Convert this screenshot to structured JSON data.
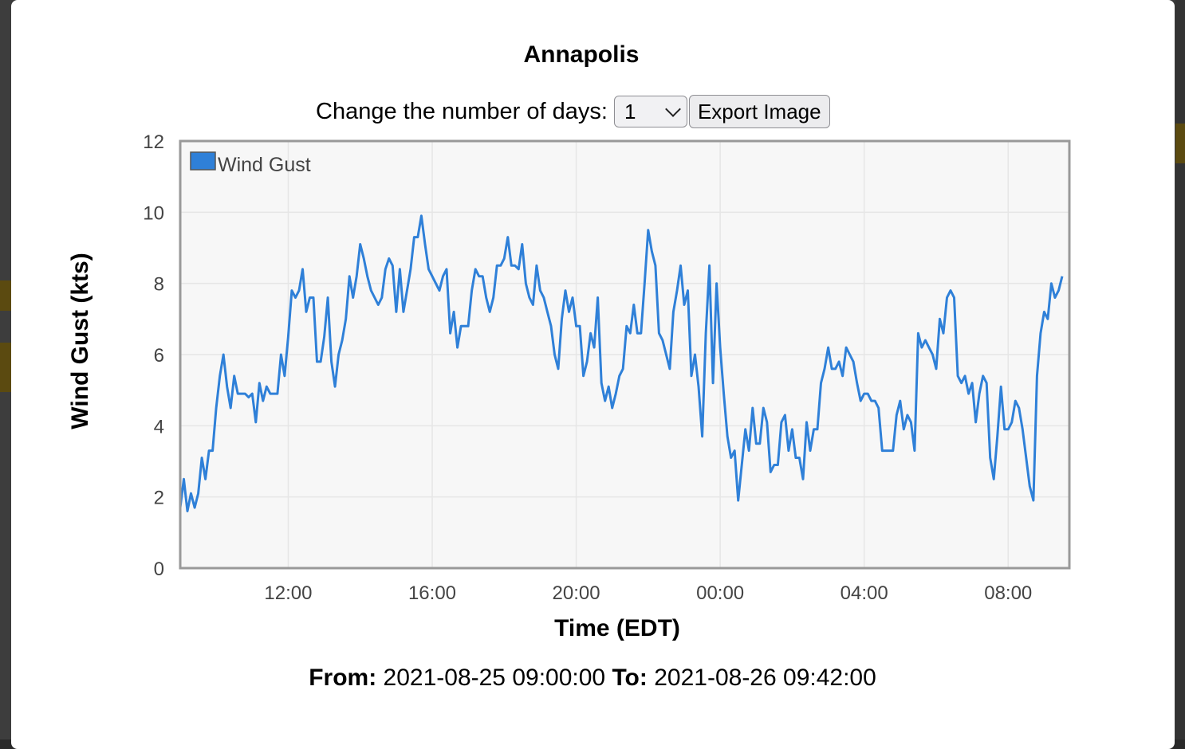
{
  "title": "Annapolis",
  "controls": {
    "days_label": "Change the number of days:",
    "days_selected": "1",
    "export_label": "Export Image"
  },
  "footer": {
    "from_label": "From:",
    "from_value": "2021-08-25 09:00:00",
    "to_label": "To:",
    "to_value": "2021-08-26 09:42:00"
  },
  "colors": {
    "series": "#2f80d8",
    "plot_bg": "#f7f7f7",
    "grid": "#e6e6e6",
    "border": "#999999"
  },
  "chart_data": {
    "type": "line",
    "xlabel": "Time (EDT)",
    "ylabel": "Wind Gust (kts)",
    "ylim": [
      0,
      12
    ],
    "yticks": [
      0,
      2,
      4,
      6,
      8,
      10,
      12
    ],
    "xlim": [
      "2021-08-25 09:00",
      "2021-08-26 09:42"
    ],
    "xticks": [
      {
        "time": "2021-08-25 12:00",
        "label": "12:00"
      },
      {
        "time": "2021-08-25 16:00",
        "label": "16:00"
      },
      {
        "time": "2021-08-25 20:00",
        "label": "20:00"
      },
      {
        "time": "2021-08-26 00:00",
        "label": "00:00"
      },
      {
        "time": "2021-08-26 04:00",
        "label": "04:00"
      },
      {
        "time": "2021-08-26 08:00",
        "label": "08:00"
      }
    ],
    "grid": true,
    "legend_position": "top-left",
    "series": [
      {
        "name": "Wind Gust",
        "color": "#2f80d8",
        "points": [
          [
            "2021-08-25 09:00",
            1.7
          ],
          [
            "2021-08-25 09:06",
            2.5
          ],
          [
            "2021-08-25 09:12",
            1.6
          ],
          [
            "2021-08-25 09:18",
            2.1
          ],
          [
            "2021-08-25 09:24",
            1.7
          ],
          [
            "2021-08-25 09:30",
            2.1
          ],
          [
            "2021-08-25 09:36",
            3.1
          ],
          [
            "2021-08-25 09:42",
            2.5
          ],
          [
            "2021-08-25 09:48",
            3.3
          ],
          [
            "2021-08-25 09:54",
            3.3
          ],
          [
            "2021-08-25 10:00",
            4.5
          ],
          [
            "2021-08-25 10:06",
            5.4
          ],
          [
            "2021-08-25 10:12",
            6.0
          ],
          [
            "2021-08-25 10:18",
            5.1
          ],
          [
            "2021-08-25 10:24",
            4.5
          ],
          [
            "2021-08-25 10:30",
            5.4
          ],
          [
            "2021-08-25 10:36",
            4.9
          ],
          [
            "2021-08-25 10:42",
            4.9
          ],
          [
            "2021-08-25 10:48",
            4.9
          ],
          [
            "2021-08-25 10:54",
            4.8
          ],
          [
            "2021-08-25 11:00",
            4.9
          ],
          [
            "2021-08-25 11:06",
            4.1
          ],
          [
            "2021-08-25 11:12",
            5.2
          ],
          [
            "2021-08-25 11:18",
            4.7
          ],
          [
            "2021-08-25 11:24",
            5.1
          ],
          [
            "2021-08-25 11:30",
            4.9
          ],
          [
            "2021-08-25 11:36",
            4.9
          ],
          [
            "2021-08-25 11:42",
            4.9
          ],
          [
            "2021-08-25 11:48",
            6.0
          ],
          [
            "2021-08-25 11:54",
            5.4
          ],
          [
            "2021-08-25 12:00",
            6.5
          ],
          [
            "2021-08-25 12:06",
            7.8
          ],
          [
            "2021-08-25 12:12",
            7.6
          ],
          [
            "2021-08-25 12:18",
            7.8
          ],
          [
            "2021-08-25 12:24",
            8.4
          ],
          [
            "2021-08-25 12:30",
            7.2
          ],
          [
            "2021-08-25 12:36",
            7.6
          ],
          [
            "2021-08-25 12:42",
            7.6
          ],
          [
            "2021-08-25 12:48",
            5.8
          ],
          [
            "2021-08-25 12:54",
            5.8
          ],
          [
            "2021-08-25 13:00",
            6.5
          ],
          [
            "2021-08-25 13:06",
            7.6
          ],
          [
            "2021-08-25 13:12",
            5.8
          ],
          [
            "2021-08-25 13:18",
            5.1
          ],
          [
            "2021-08-25 13:24",
            6.0
          ],
          [
            "2021-08-25 13:30",
            6.4
          ],
          [
            "2021-08-25 13:36",
            7.0
          ],
          [
            "2021-08-25 13:42",
            8.2
          ],
          [
            "2021-08-25 13:48",
            7.6
          ],
          [
            "2021-08-25 13:54",
            8.2
          ],
          [
            "2021-08-25 14:00",
            9.1
          ],
          [
            "2021-08-25 14:06",
            8.7
          ],
          [
            "2021-08-25 14:12",
            8.2
          ],
          [
            "2021-08-25 14:18",
            7.8
          ],
          [
            "2021-08-25 14:24",
            7.6
          ],
          [
            "2021-08-25 14:30",
            7.4
          ],
          [
            "2021-08-25 14:36",
            7.6
          ],
          [
            "2021-08-25 14:42",
            8.4
          ],
          [
            "2021-08-25 14:48",
            8.7
          ],
          [
            "2021-08-25 14:54",
            8.5
          ],
          [
            "2021-08-25 15:00",
            7.2
          ],
          [
            "2021-08-25 15:06",
            8.4
          ],
          [
            "2021-08-25 15:12",
            7.2
          ],
          [
            "2021-08-25 15:18",
            7.8
          ],
          [
            "2021-08-25 15:24",
            8.4
          ],
          [
            "2021-08-25 15:30",
            9.3
          ],
          [
            "2021-08-25 15:36",
            9.3
          ],
          [
            "2021-08-25 15:42",
            9.9
          ],
          [
            "2021-08-25 15:48",
            9.1
          ],
          [
            "2021-08-25 15:54",
            8.4
          ],
          [
            "2021-08-25 16:00",
            8.2
          ],
          [
            "2021-08-25 16:06",
            8.0
          ],
          [
            "2021-08-25 16:12",
            7.8
          ],
          [
            "2021-08-25 16:18",
            8.2
          ],
          [
            "2021-08-25 16:24",
            8.4
          ],
          [
            "2021-08-25 16:30",
            6.6
          ],
          [
            "2021-08-25 16:36",
            7.2
          ],
          [
            "2021-08-25 16:42",
            6.2
          ],
          [
            "2021-08-25 16:48",
            6.8
          ],
          [
            "2021-08-25 16:54",
            6.8
          ],
          [
            "2021-08-25 17:00",
            6.8
          ],
          [
            "2021-08-25 17:06",
            7.8
          ],
          [
            "2021-08-25 17:12",
            8.4
          ],
          [
            "2021-08-25 17:18",
            8.2
          ],
          [
            "2021-08-25 17:24",
            8.2
          ],
          [
            "2021-08-25 17:30",
            7.6
          ],
          [
            "2021-08-25 17:36",
            7.2
          ],
          [
            "2021-08-25 17:42",
            7.6
          ],
          [
            "2021-08-25 17:48",
            8.5
          ],
          [
            "2021-08-25 17:54",
            8.5
          ],
          [
            "2021-08-25 18:00",
            8.7
          ],
          [
            "2021-08-25 18:06",
            9.3
          ],
          [
            "2021-08-25 18:12",
            8.5
          ],
          [
            "2021-08-25 18:18",
            8.5
          ],
          [
            "2021-08-25 18:24",
            8.4
          ],
          [
            "2021-08-25 18:30",
            9.1
          ],
          [
            "2021-08-25 18:36",
            8.0
          ],
          [
            "2021-08-25 18:42",
            7.6
          ],
          [
            "2021-08-25 18:48",
            7.4
          ],
          [
            "2021-08-25 18:54",
            8.5
          ],
          [
            "2021-08-25 19:00",
            7.8
          ],
          [
            "2021-08-25 19:06",
            7.6
          ],
          [
            "2021-08-25 19:12",
            7.2
          ],
          [
            "2021-08-25 19:18",
            6.8
          ],
          [
            "2021-08-25 19:24",
            6.0
          ],
          [
            "2021-08-25 19:30",
            5.6
          ],
          [
            "2021-08-25 19:36",
            7.0
          ],
          [
            "2021-08-25 19:42",
            7.8
          ],
          [
            "2021-08-25 19:48",
            7.2
          ],
          [
            "2021-08-25 19:54",
            7.6
          ],
          [
            "2021-08-25 20:00",
            6.8
          ],
          [
            "2021-08-25 20:06",
            6.8
          ],
          [
            "2021-08-25 20:12",
            5.4
          ],
          [
            "2021-08-25 20:18",
            5.8
          ],
          [
            "2021-08-25 20:24",
            6.6
          ],
          [
            "2021-08-25 20:30",
            6.2
          ],
          [
            "2021-08-25 20:36",
            7.6
          ],
          [
            "2021-08-25 20:42",
            5.2
          ],
          [
            "2021-08-25 20:48",
            4.7
          ],
          [
            "2021-08-25 20:54",
            5.1
          ],
          [
            "2021-08-25 21:00",
            4.5
          ],
          [
            "2021-08-25 21:06",
            4.9
          ],
          [
            "2021-08-25 21:12",
            5.4
          ],
          [
            "2021-08-25 21:18",
            5.6
          ],
          [
            "2021-08-25 21:24",
            6.8
          ],
          [
            "2021-08-25 21:30",
            6.6
          ],
          [
            "2021-08-25 21:36",
            7.4
          ],
          [
            "2021-08-25 21:42",
            6.6
          ],
          [
            "2021-08-25 21:48",
            6.6
          ],
          [
            "2021-08-25 21:54",
            8.0
          ],
          [
            "2021-08-25 22:00",
            9.5
          ],
          [
            "2021-08-25 22:06",
            8.9
          ],
          [
            "2021-08-25 22:12",
            8.5
          ],
          [
            "2021-08-25 22:18",
            6.6
          ],
          [
            "2021-08-25 22:24",
            6.4
          ],
          [
            "2021-08-25 22:30",
            6.0
          ],
          [
            "2021-08-25 22:36",
            5.6
          ],
          [
            "2021-08-25 22:42",
            7.2
          ],
          [
            "2021-08-25 22:48",
            7.8
          ],
          [
            "2021-08-25 22:54",
            8.5
          ],
          [
            "2021-08-25 23:00",
            7.4
          ],
          [
            "2021-08-25 23:06",
            7.8
          ],
          [
            "2021-08-25 23:12",
            5.4
          ],
          [
            "2021-08-25 23:18",
            6.0
          ],
          [
            "2021-08-25 23:24",
            5.1
          ],
          [
            "2021-08-25 23:30",
            3.7
          ],
          [
            "2021-08-25 23:36",
            6.6
          ],
          [
            "2021-08-25 23:42",
            8.5
          ],
          [
            "2021-08-25 23:48",
            5.2
          ],
          [
            "2021-08-25 23:54",
            8.0
          ],
          [
            "2021-08-26 00:00",
            6.2
          ],
          [
            "2021-08-26 00:06",
            4.9
          ],
          [
            "2021-08-26 00:12",
            3.7
          ],
          [
            "2021-08-26 00:18",
            3.1
          ],
          [
            "2021-08-26 00:24",
            3.3
          ],
          [
            "2021-08-26 00:30",
            1.9
          ],
          [
            "2021-08-26 00:36",
            2.9
          ],
          [
            "2021-08-26 00:42",
            3.9
          ],
          [
            "2021-08-26 00:48",
            3.3
          ],
          [
            "2021-08-26 00:54",
            4.5
          ],
          [
            "2021-08-26 01:00",
            3.5
          ],
          [
            "2021-08-26 01:06",
            3.5
          ],
          [
            "2021-08-26 01:12",
            4.5
          ],
          [
            "2021-08-26 01:18",
            4.1
          ],
          [
            "2021-08-26 01:24",
            2.7
          ],
          [
            "2021-08-26 01:30",
            2.9
          ],
          [
            "2021-08-26 01:36",
            2.9
          ],
          [
            "2021-08-26 01:42",
            4.1
          ],
          [
            "2021-08-26 01:48",
            4.3
          ],
          [
            "2021-08-26 01:54",
            3.3
          ],
          [
            "2021-08-26 02:00",
            3.9
          ],
          [
            "2021-08-26 02:06",
            3.1
          ],
          [
            "2021-08-26 02:12",
            3.1
          ],
          [
            "2021-08-26 02:18",
            2.5
          ],
          [
            "2021-08-26 02:24",
            4.1
          ],
          [
            "2021-08-26 02:30",
            3.3
          ],
          [
            "2021-08-26 02:36",
            3.9
          ],
          [
            "2021-08-26 02:42",
            3.9
          ],
          [
            "2021-08-26 02:48",
            5.2
          ],
          [
            "2021-08-26 02:54",
            5.6
          ],
          [
            "2021-08-26 03:00",
            6.2
          ],
          [
            "2021-08-26 03:06",
            5.6
          ],
          [
            "2021-08-26 03:12",
            5.6
          ],
          [
            "2021-08-26 03:18",
            5.8
          ],
          [
            "2021-08-26 03:24",
            5.4
          ],
          [
            "2021-08-26 03:30",
            6.2
          ],
          [
            "2021-08-26 03:36",
            6.0
          ],
          [
            "2021-08-26 03:42",
            5.8
          ],
          [
            "2021-08-26 03:48",
            5.2
          ],
          [
            "2021-08-26 03:54",
            4.7
          ],
          [
            "2021-08-26 04:00",
            4.9
          ],
          [
            "2021-08-26 04:06",
            4.9
          ],
          [
            "2021-08-26 04:12",
            4.7
          ],
          [
            "2021-08-26 04:18",
            4.7
          ],
          [
            "2021-08-26 04:24",
            4.5
          ],
          [
            "2021-08-26 04:30",
            3.3
          ],
          [
            "2021-08-26 04:36",
            3.3
          ],
          [
            "2021-08-26 04:42",
            3.3
          ],
          [
            "2021-08-26 04:48",
            3.3
          ],
          [
            "2021-08-26 04:54",
            4.3
          ],
          [
            "2021-08-26 05:00",
            4.7
          ],
          [
            "2021-08-26 05:06",
            3.9
          ],
          [
            "2021-08-26 05:12",
            4.3
          ],
          [
            "2021-08-26 05:18",
            4.1
          ],
          [
            "2021-08-26 05:24",
            3.3
          ],
          [
            "2021-08-26 05:30",
            6.6
          ],
          [
            "2021-08-26 05:36",
            6.2
          ],
          [
            "2021-08-26 05:42",
            6.4
          ],
          [
            "2021-08-26 05:48",
            6.2
          ],
          [
            "2021-08-26 05:54",
            6.0
          ],
          [
            "2021-08-26 06:00",
            5.6
          ],
          [
            "2021-08-26 06:06",
            7.0
          ],
          [
            "2021-08-26 06:12",
            6.6
          ],
          [
            "2021-08-26 06:18",
            7.6
          ],
          [
            "2021-08-26 06:24",
            7.8
          ],
          [
            "2021-08-26 06:30",
            7.6
          ],
          [
            "2021-08-26 06:36",
            5.4
          ],
          [
            "2021-08-26 06:42",
            5.2
          ],
          [
            "2021-08-26 06:48",
            5.4
          ],
          [
            "2021-08-26 06:54",
            4.9
          ],
          [
            "2021-08-26 07:00",
            5.2
          ],
          [
            "2021-08-26 07:06",
            4.1
          ],
          [
            "2021-08-26 07:12",
            4.9
          ],
          [
            "2021-08-26 07:18",
            5.4
          ],
          [
            "2021-08-26 07:24",
            5.2
          ],
          [
            "2021-08-26 07:30",
            3.1
          ],
          [
            "2021-08-26 07:36",
            2.5
          ],
          [
            "2021-08-26 07:42",
            3.7
          ],
          [
            "2021-08-26 07:48",
            5.1
          ],
          [
            "2021-08-26 07:54",
            3.9
          ],
          [
            "2021-08-26 08:00",
            3.9
          ],
          [
            "2021-08-26 08:06",
            4.1
          ],
          [
            "2021-08-26 08:12",
            4.7
          ],
          [
            "2021-08-26 08:18",
            4.5
          ],
          [
            "2021-08-26 08:24",
            3.9
          ],
          [
            "2021-08-26 08:30",
            3.1
          ],
          [
            "2021-08-26 08:36",
            2.3
          ],
          [
            "2021-08-26 08:42",
            1.9
          ],
          [
            "2021-08-26 08:48",
            5.4
          ],
          [
            "2021-08-26 08:54",
            6.6
          ],
          [
            "2021-08-26 09:00",
            7.2
          ],
          [
            "2021-08-26 09:06",
            7.0
          ],
          [
            "2021-08-26 09:12",
            8.0
          ],
          [
            "2021-08-26 09:18",
            7.6
          ],
          [
            "2021-08-26 09:24",
            7.8
          ],
          [
            "2021-08-26 09:30",
            8.2
          ]
        ]
      }
    ]
  }
}
